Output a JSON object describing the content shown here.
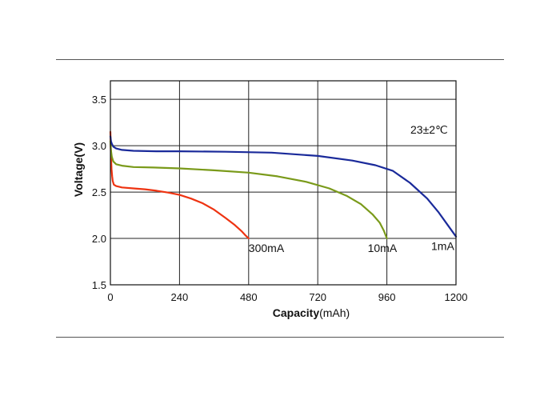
{
  "chart_data": {
    "type": "line",
    "xlabel_bold": "Capacity",
    "xlabel_unit": "(mAh)",
    "ylabel": "Voltage(V)",
    "xlim": [
      0,
      1200
    ],
    "ylim": [
      1.5,
      3.7
    ],
    "x_ticks": [
      "0",
      "240",
      "480",
      "720",
      "960",
      "1200"
    ],
    "y_ticks": [
      "1.5",
      "2.0",
      "2.5",
      "3.0",
      "3.5"
    ],
    "grid": true,
    "annotation": "23±2℃",
    "series": [
      {
        "name": "300mA",
        "color": "#ee3311",
        "x": [
          0,
          2,
          4,
          6,
          8,
          12,
          20,
          40,
          80,
          120,
          160,
          200,
          240,
          280,
          320,
          360,
          400,
          430,
          455,
          470,
          480
        ],
        "y": [
          3.15,
          2.9,
          2.75,
          2.67,
          2.62,
          2.58,
          2.565,
          2.55,
          2.54,
          2.53,
          2.515,
          2.495,
          2.47,
          2.43,
          2.38,
          2.31,
          2.22,
          2.15,
          2.08,
          2.03,
          2.0
        ]
      },
      {
        "name": "10mA",
        "color": "#7a9a1a",
        "x": [
          0,
          2,
          5,
          10,
          20,
          40,
          80,
          150,
          240,
          360,
          480,
          580,
          680,
          760,
          820,
          870,
          910,
          935,
          950,
          960
        ],
        "y": [
          3.05,
          2.95,
          2.88,
          2.83,
          2.8,
          2.785,
          2.77,
          2.765,
          2.755,
          2.735,
          2.71,
          2.67,
          2.61,
          2.54,
          2.46,
          2.37,
          2.26,
          2.17,
          2.08,
          2.0
        ]
      },
      {
        "name": "1mA",
        "color": "#1a2a9a",
        "x": [
          0,
          2,
          5,
          10,
          20,
          40,
          80,
          160,
          240,
          400,
          560,
          720,
          840,
          920,
          980,
          1040,
          1100,
          1140,
          1170,
          1200
        ],
        "y": [
          3.1,
          3.05,
          3.02,
          2.99,
          2.97,
          2.955,
          2.945,
          2.94,
          2.94,
          2.935,
          2.925,
          2.89,
          2.84,
          2.79,
          2.73,
          2.6,
          2.43,
          2.28,
          2.15,
          2.02
        ]
      }
    ]
  }
}
